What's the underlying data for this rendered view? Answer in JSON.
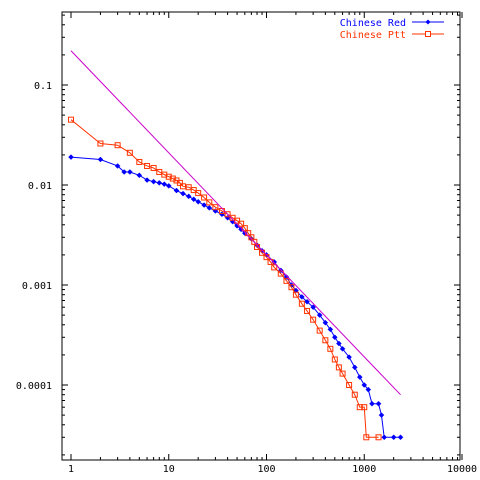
{
  "chart_data": {
    "type": "line",
    "xscale": "log",
    "yscale": "log",
    "xlim": [
      1,
      10000
    ],
    "ylim": [
      2e-05,
      0.5
    ],
    "legend": "top-right",
    "grid": false,
    "x_ticks": [
      {
        "v": 1,
        "label": "1"
      },
      {
        "v": 10,
        "label": "10"
      },
      {
        "v": 100,
        "label": "100"
      },
      {
        "v": 1000,
        "label": "1000"
      },
      {
        "v": 10000,
        "label": "10000"
      }
    ],
    "y_ticks": [
      {
        "v": 0.1,
        "label": "0.1"
      },
      {
        "v": 0.01,
        "label": "0.01"
      },
      {
        "v": 0.001,
        "label": "0.001"
      },
      {
        "v": 0.0001,
        "label": "0.0001"
      }
    ],
    "series": [
      {
        "name": "Chinese Red",
        "color": "#0000ff",
        "marker": "diamond",
        "points": [
          [
            1,
            0.019
          ],
          [
            2,
            0.018
          ],
          [
            3,
            0.0155
          ],
          [
            3.5,
            0.0135
          ],
          [
            4,
            0.0135
          ],
          [
            5,
            0.0125
          ],
          [
            6,
            0.0112
          ],
          [
            7,
            0.0108
          ],
          [
            8,
            0.0105
          ],
          [
            9,
            0.0102
          ],
          [
            10,
            0.0098
          ],
          [
            12,
            0.0088
          ],
          [
            14,
            0.0082
          ],
          [
            16,
            0.0077
          ],
          [
            18,
            0.0072
          ],
          [
            20,
            0.0068
          ],
          [
            23,
            0.0063
          ],
          [
            26,
            0.0059
          ],
          [
            30,
            0.0055
          ],
          [
            35,
            0.0051
          ],
          [
            40,
            0.0047
          ],
          [
            45,
            0.0043
          ],
          [
            50,
            0.0039
          ],
          [
            55,
            0.0036
          ],
          [
            60,
            0.0033
          ],
          [
            70,
            0.0029
          ],
          [
            80,
            0.0025
          ],
          [
            90,
            0.0022
          ],
          [
            100,
            0.002
          ],
          [
            120,
            0.0017
          ],
          [
            140,
            0.0014
          ],
          [
            160,
            0.0012
          ],
          [
            180,
            0.001
          ],
          [
            200,
            0.00088
          ],
          [
            230,
            0.00076
          ],
          [
            260,
            0.00068
          ],
          [
            300,
            0.0006
          ],
          [
            350,
            0.0005
          ],
          [
            400,
            0.00042
          ],
          [
            450,
            0.00036
          ],
          [
            500,
            0.0003
          ],
          [
            550,
            0.00026
          ],
          [
            600,
            0.00023
          ],
          [
            700,
            0.00019
          ],
          [
            800,
            0.00015
          ],
          [
            900,
            0.00012
          ],
          [
            1000,
            0.0001
          ],
          [
            1100,
            9e-05
          ],
          [
            1200,
            6.5e-05
          ],
          [
            1400,
            6.5e-05
          ],
          [
            1500,
            5e-05
          ],
          [
            1600,
            3e-05
          ],
          [
            2000,
            3e-05
          ],
          [
            2350,
            3e-05
          ]
        ]
      },
      {
        "name": "Chinese Ptt",
        "color": "#ff3300",
        "marker": "square",
        "points": [
          [
            1,
            0.045
          ],
          [
            2,
            0.026
          ],
          [
            3,
            0.025
          ],
          [
            4,
            0.021
          ],
          [
            5,
            0.017
          ],
          [
            6,
            0.0155
          ],
          [
            7,
            0.0148
          ],
          [
            8,
            0.0135
          ],
          [
            9,
            0.0127
          ],
          [
            10,
            0.0121
          ],
          [
            11,
            0.0116
          ],
          [
            12,
            0.0111
          ],
          [
            13,
            0.0105
          ],
          [
            14,
            0.0097
          ],
          [
            16,
            0.0095
          ],
          [
            18,
            0.0089
          ],
          [
            20,
            0.0083
          ],
          [
            23,
            0.0075
          ],
          [
            26,
            0.0067
          ],
          [
            30,
            0.006
          ],
          [
            35,
            0.0055
          ],
          [
            40,
            0.0051
          ],
          [
            45,
            0.0047
          ],
          [
            50,
            0.0044
          ],
          [
            55,
            0.0041
          ],
          [
            60,
            0.0037
          ],
          [
            65,
            0.0033
          ],
          [
            70,
            0.003
          ],
          [
            75,
            0.0027
          ],
          [
            80,
            0.0024
          ],
          [
            90,
            0.0021
          ],
          [
            100,
            0.0019
          ],
          [
            110,
            0.0017
          ],
          [
            120,
            0.0015
          ],
          [
            140,
            0.0013
          ],
          [
            160,
            0.0011
          ],
          [
            180,
            0.00095
          ],
          [
            200,
            0.0008
          ],
          [
            230,
            0.00065
          ],
          [
            260,
            0.00055
          ],
          [
            300,
            0.00045
          ],
          [
            350,
            0.00035
          ],
          [
            400,
            0.00028
          ],
          [
            450,
            0.00023
          ],
          [
            500,
            0.00018
          ],
          [
            550,
            0.00015
          ],
          [
            600,
            0.00013
          ],
          [
            700,
            0.0001
          ],
          [
            800,
            8e-05
          ],
          [
            900,
            6e-05
          ],
          [
            1000,
            6e-05
          ],
          [
            1050,
            3e-05
          ],
          [
            1400,
            3e-05
          ]
        ]
      },
      {
        "color": "#cc00cc",
        "marker": "none",
        "points": [
          [
            1,
            0.22
          ],
          [
            2350,
            8e-05
          ]
        ]
      }
    ]
  }
}
